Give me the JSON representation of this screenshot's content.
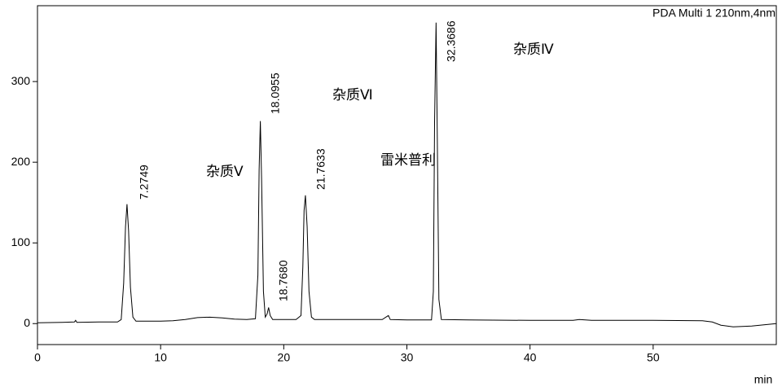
{
  "chart_data": {
    "type": "line",
    "title": "PDA Multi 1 210nm,4nm",
    "xlabel": "min",
    "xlim": [
      0,
      60
    ],
    "ylim": [
      -26,
      394
    ],
    "xticks": [
      0,
      10,
      20,
      30,
      40,
      50
    ],
    "yticks": [
      0,
      100,
      200,
      300
    ],
    "color": "#000000",
    "x": [
      0,
      2,
      3,
      3.1,
      3.2,
      5,
      6.5,
      6.8,
      7.0,
      7.15,
      7.27,
      7.4,
      7.55,
      7.75,
      8.0,
      10,
      11,
      12,
      13,
      14,
      15,
      16,
      17,
      17.7,
      17.9,
      18.0,
      18.1,
      18.2,
      18.35,
      18.5,
      18.65,
      18.77,
      18.9,
      19.1,
      21,
      21.4,
      21.55,
      21.65,
      21.76,
      21.9,
      22.05,
      22.25,
      22.5,
      25,
      28,
      28.4,
      28.5,
      28.65,
      30,
      32,
      32.15,
      32.25,
      32.37,
      32.47,
      32.6,
      32.8,
      35,
      40,
      43.5,
      44,
      45,
      50,
      54,
      54.8,
      55.5,
      56.5,
      58,
      60
    ],
    "values": [
      1,
      1.5,
      2,
      4,
      1.5,
      2,
      2,
      5,
      50,
      120,
      148,
      115,
      45,
      8,
      3,
      3,
      3.5,
      5,
      7.5,
      8,
      7,
      5.5,
      5,
      6,
      60,
      190,
      251,
      180,
      40,
      8,
      12,
      20,
      10,
      5,
      5,
      10,
      70,
      140,
      159,
      120,
      40,
      8,
      5,
      5,
      5,
      9,
      10,
      5,
      4.5,
      4.5,
      40,
      250,
      373,
      230,
      30,
      5,
      4.5,
      4,
      4,
      5,
      4,
      4,
      3.5,
      2,
      -2,
      -4,
      -3,
      0
    ],
    "peak_labels": [
      "7.2749",
      "18.0955",
      "18.7680",
      "21.7633",
      "32.3686"
    ],
    "annotations": [
      "杂质Ⅴ",
      "杂质Ⅵ",
      "雷米普利",
      "杂质Ⅳ"
    ]
  }
}
